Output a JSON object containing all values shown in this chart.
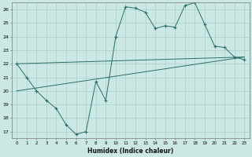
{
  "xlabel": "Humidex (Indice chaleur)",
  "background_color": "#cce8e5",
  "grid_color": "#aacfcc",
  "line_color": "#2a6e68",
  "xlim": [
    -0.5,
    23.5
  ],
  "ylim": [
    16.5,
    26.5
  ],
  "xticks": [
    0,
    1,
    2,
    3,
    4,
    5,
    6,
    7,
    8,
    9,
    10,
    11,
    12,
    13,
    14,
    15,
    16,
    17,
    18,
    19,
    20,
    21,
    22,
    23
  ],
  "yticks": [
    17,
    18,
    19,
    20,
    21,
    22,
    23,
    24,
    25,
    26
  ],
  "line1_x": [
    0,
    1,
    2,
    3,
    4,
    5,
    6,
    7,
    8,
    9,
    10,
    11,
    12,
    13,
    14,
    15,
    16,
    17,
    18,
    19,
    20,
    21,
    22,
    23
  ],
  "line1_y": [
    22.0,
    21.0,
    20.0,
    19.3,
    18.7,
    17.5,
    16.8,
    17.0,
    20.7,
    19.3,
    24.0,
    26.2,
    26.1,
    25.8,
    24.6,
    24.8,
    24.7,
    26.3,
    26.5,
    24.9,
    23.3,
    23.2,
    22.5,
    22.3
  ],
  "line2_x": [
    0,
    23
  ],
  "line2_y": [
    22.0,
    22.5
  ],
  "line3_x": [
    0,
    23
  ],
  "line3_y": [
    20.0,
    22.5
  ]
}
